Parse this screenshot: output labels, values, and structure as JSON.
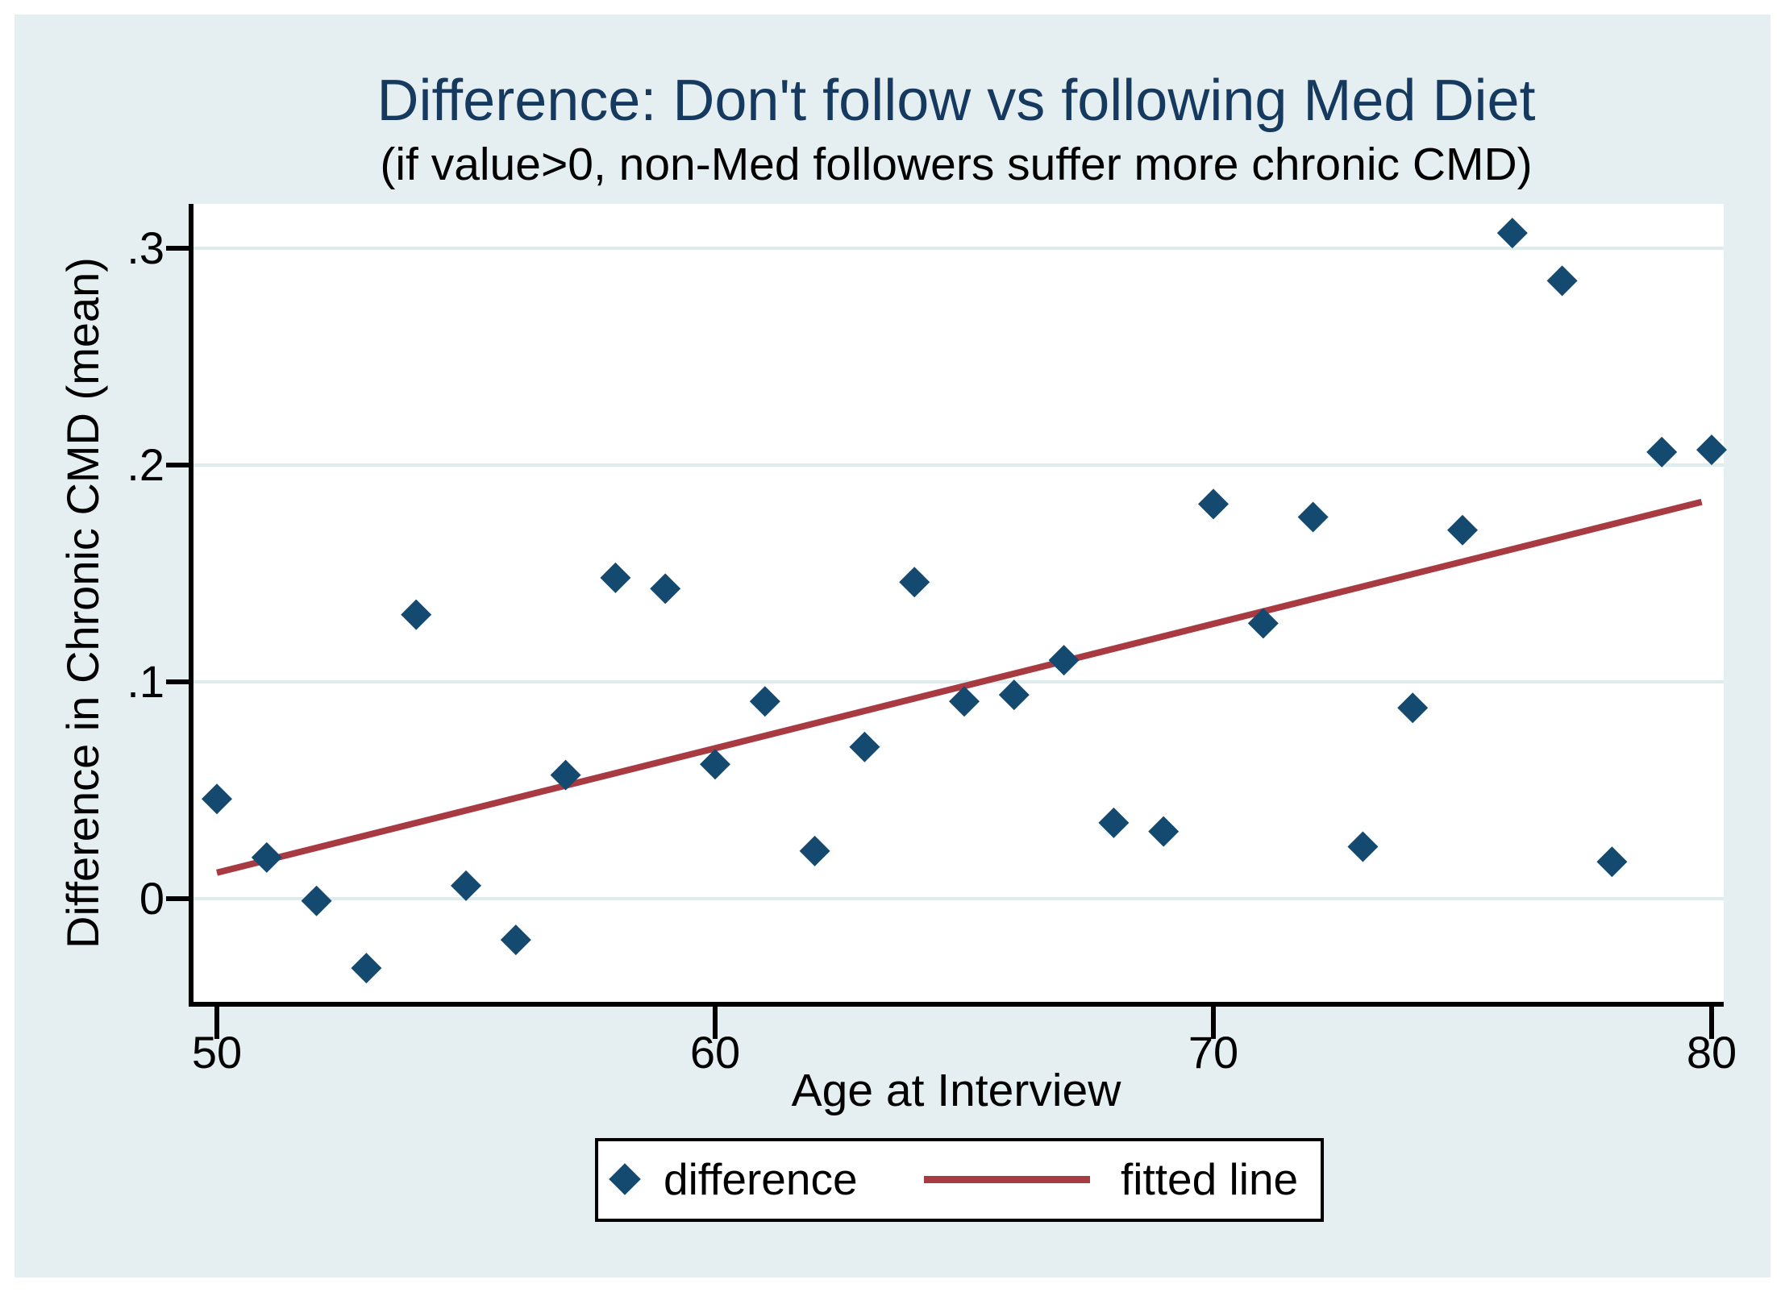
{
  "colors": {
    "title_navy": "#163a5f",
    "marker_navy": "#154a70",
    "fitted_maroon": "#a83a42",
    "panel_background": "#e5eff1",
    "plot_background": "#ffffff",
    "gridline": "#dfecee",
    "axis_black": "#000000"
  },
  "chart_data": {
    "type": "scatter",
    "title": "Difference: Don't follow vs following Med Diet",
    "subtitle": "(if value>0, non-Med followers suffer more chronic CMD)",
    "xlabel": "Age at Interview",
    "ylabel": "Difference in Chronic CMD (mean)",
    "xlim": [
      49.4,
      80.3
    ],
    "ylim": [
      -0.048,
      0.32
    ],
    "grid": "horizontal",
    "x_ticks": [
      {
        "value": 50,
        "label": "50"
      },
      {
        "value": 60,
        "label": "60"
      },
      {
        "value": 70,
        "label": "70"
      },
      {
        "value": 80,
        "label": "80"
      }
    ],
    "y_ticks": [
      {
        "value": 0,
        "label": "0"
      },
      {
        "value": 0.1,
        "label": ".1"
      },
      {
        "value": 0.2,
        "label": ".2"
      },
      {
        "value": 0.3,
        "label": ".3"
      }
    ],
    "series": [
      {
        "name": "difference",
        "type": "scatter",
        "marker": "diamond",
        "color": "#154a70",
        "x": [
          50,
          51,
          52,
          53,
          54,
          55,
          56,
          57,
          58,
          59,
          60,
          61,
          62,
          63,
          64,
          65,
          66,
          67,
          68,
          69,
          70,
          71,
          72,
          73,
          74,
          75,
          76,
          77,
          78,
          79,
          80
        ],
        "y": [
          0.046,
          0.019,
          -0.001,
          -0.032,
          0.131,
          0.006,
          -0.019,
          0.057,
          0.148,
          0.143,
          0.062,
          0.091,
          0.022,
          0.07,
          0.146,
          0.091,
          0.094,
          0.11,
          0.035,
          0.031,
          0.182,
          0.127,
          0.176,
          0.024,
          0.088,
          0.17,
          0.307,
          0.285,
          0.017,
          0.206,
          0.207
        ]
      },
      {
        "name": "fitted line",
        "type": "line",
        "color": "#a83a42",
        "x": [
          50,
          79.8
        ],
        "y": [
          0.012,
          0.183
        ]
      }
    ],
    "legend": {
      "position": "bottom",
      "entries": [
        "difference",
        "fitted line"
      ]
    }
  }
}
